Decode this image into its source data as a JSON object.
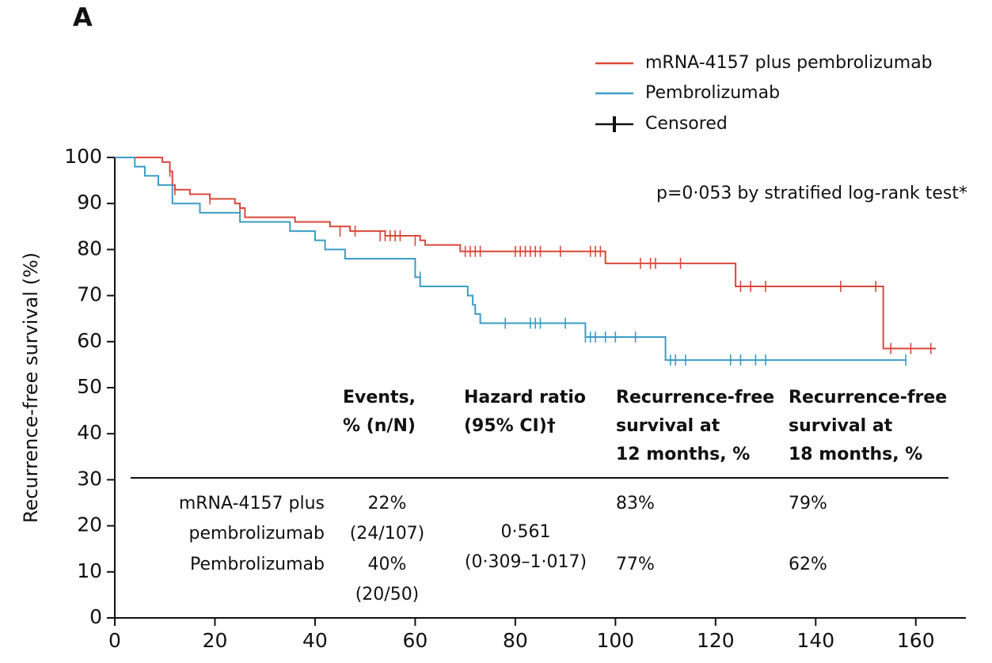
{
  "chart_data": {
    "type": "step",
    "panel_label": "A",
    "annotation": "p=0·053 by stratified log-rank test*",
    "y_label": "Recurrence-free survival (%)",
    "xlim": [
      0,
      170
    ],
    "ylim": [
      0,
      100
    ],
    "xticks": [
      0,
      20,
      40,
      60,
      80,
      100,
      120,
      140,
      160
    ],
    "yticks": [
      0,
      10,
      20,
      30,
      40,
      50,
      60,
      70,
      80,
      90,
      100
    ],
    "censor_legend": "Censored",
    "series": [
      {
        "name": "mRNA-4157 plus pembrolizumab",
        "color": "#d9483b",
        "x": [
          0,
          9.5,
          11,
          11.5,
          12,
          15,
          19,
          24,
          25,
          26,
          36,
          43,
          47,
          54,
          61,
          62,
          69,
          98,
          124,
          153.5,
          164
        ],
        "values": [
          100,
          99,
          97,
          94,
          93,
          92,
          91,
          90,
          89,
          87,
          86,
          85,
          84,
          83,
          82,
          81,
          79.6,
          77,
          72,
          58.5,
          58.5
        ],
        "censored_x": [
          11,
          12,
          19,
          25,
          45,
          48,
          53,
          54,
          55,
          56,
          57,
          60,
          70,
          71,
          72,
          73,
          80,
          81,
          82,
          83,
          84,
          85,
          89,
          95,
          96,
          97,
          105,
          107,
          108,
          113,
          125,
          127,
          130,
          145,
          152,
          155,
          159,
          163
        ],
        "censored_values": [
          97,
          93,
          91,
          89,
          84,
          84,
          83,
          83,
          83,
          83,
          83,
          82,
          79.6,
          79.6,
          79.6,
          79.6,
          79.6,
          79.6,
          79.6,
          79.6,
          79.6,
          79.6,
          79.6,
          79.6,
          79.6,
          79.6,
          77,
          77,
          77,
          77,
          72,
          72,
          72,
          72,
          72,
          58.5,
          58.5,
          58.5
        ]
      },
      {
        "name": "Pembrolizumab",
        "color": "#3b9cc4",
        "x": [
          0,
          4,
          6,
          8.7,
          11.5,
          17,
          25,
          35,
          40,
          42,
          46,
          60,
          61,
          70.5,
          71.5,
          72,
          73,
          94,
          110,
          158
        ],
        "values": [
          100,
          98,
          96,
          94,
          90,
          88,
          86,
          84,
          82,
          80,
          78,
          74,
          72,
          70,
          68,
          66,
          64,
          61,
          56,
          56
        ],
        "censored_x": [
          61,
          78,
          83,
          84,
          85,
          90,
          94,
          95,
          96,
          98,
          100,
          104,
          111,
          112,
          114,
          123,
          125,
          128,
          130,
          158
        ],
        "censored_values": [
          74,
          64,
          64,
          64,
          64,
          64,
          61,
          61,
          61,
          61,
          61,
          61,
          56,
          56,
          56,
          56,
          56,
          56,
          56,
          56
        ]
      }
    ],
    "table": {
      "headers": [
        [
          "Events,",
          "% (n/N)"
        ],
        [
          "Hazard ratio",
          "(95% CI)†"
        ],
        [
          "Recurrence-free",
          "survival at",
          "12 months, %"
        ],
        [
          "Recurrence-free",
          "survival at",
          "18 months, %"
        ]
      ],
      "rows": [
        {
          "label": [
            "mRNA-4157 plus",
            "pembrolizumab"
          ],
          "events": [
            "22%",
            "(24/107)"
          ],
          "rfs12": "83%",
          "rfs18": "79%"
        },
        {
          "label": [
            "Pembrolizumab"
          ],
          "events": [
            "40%",
            "(20/50)"
          ],
          "rfs12": "77%",
          "rfs18": "62%"
        }
      ],
      "hazard_ratio": [
        "0·561",
        "(0·309–1·017)"
      ]
    }
  }
}
